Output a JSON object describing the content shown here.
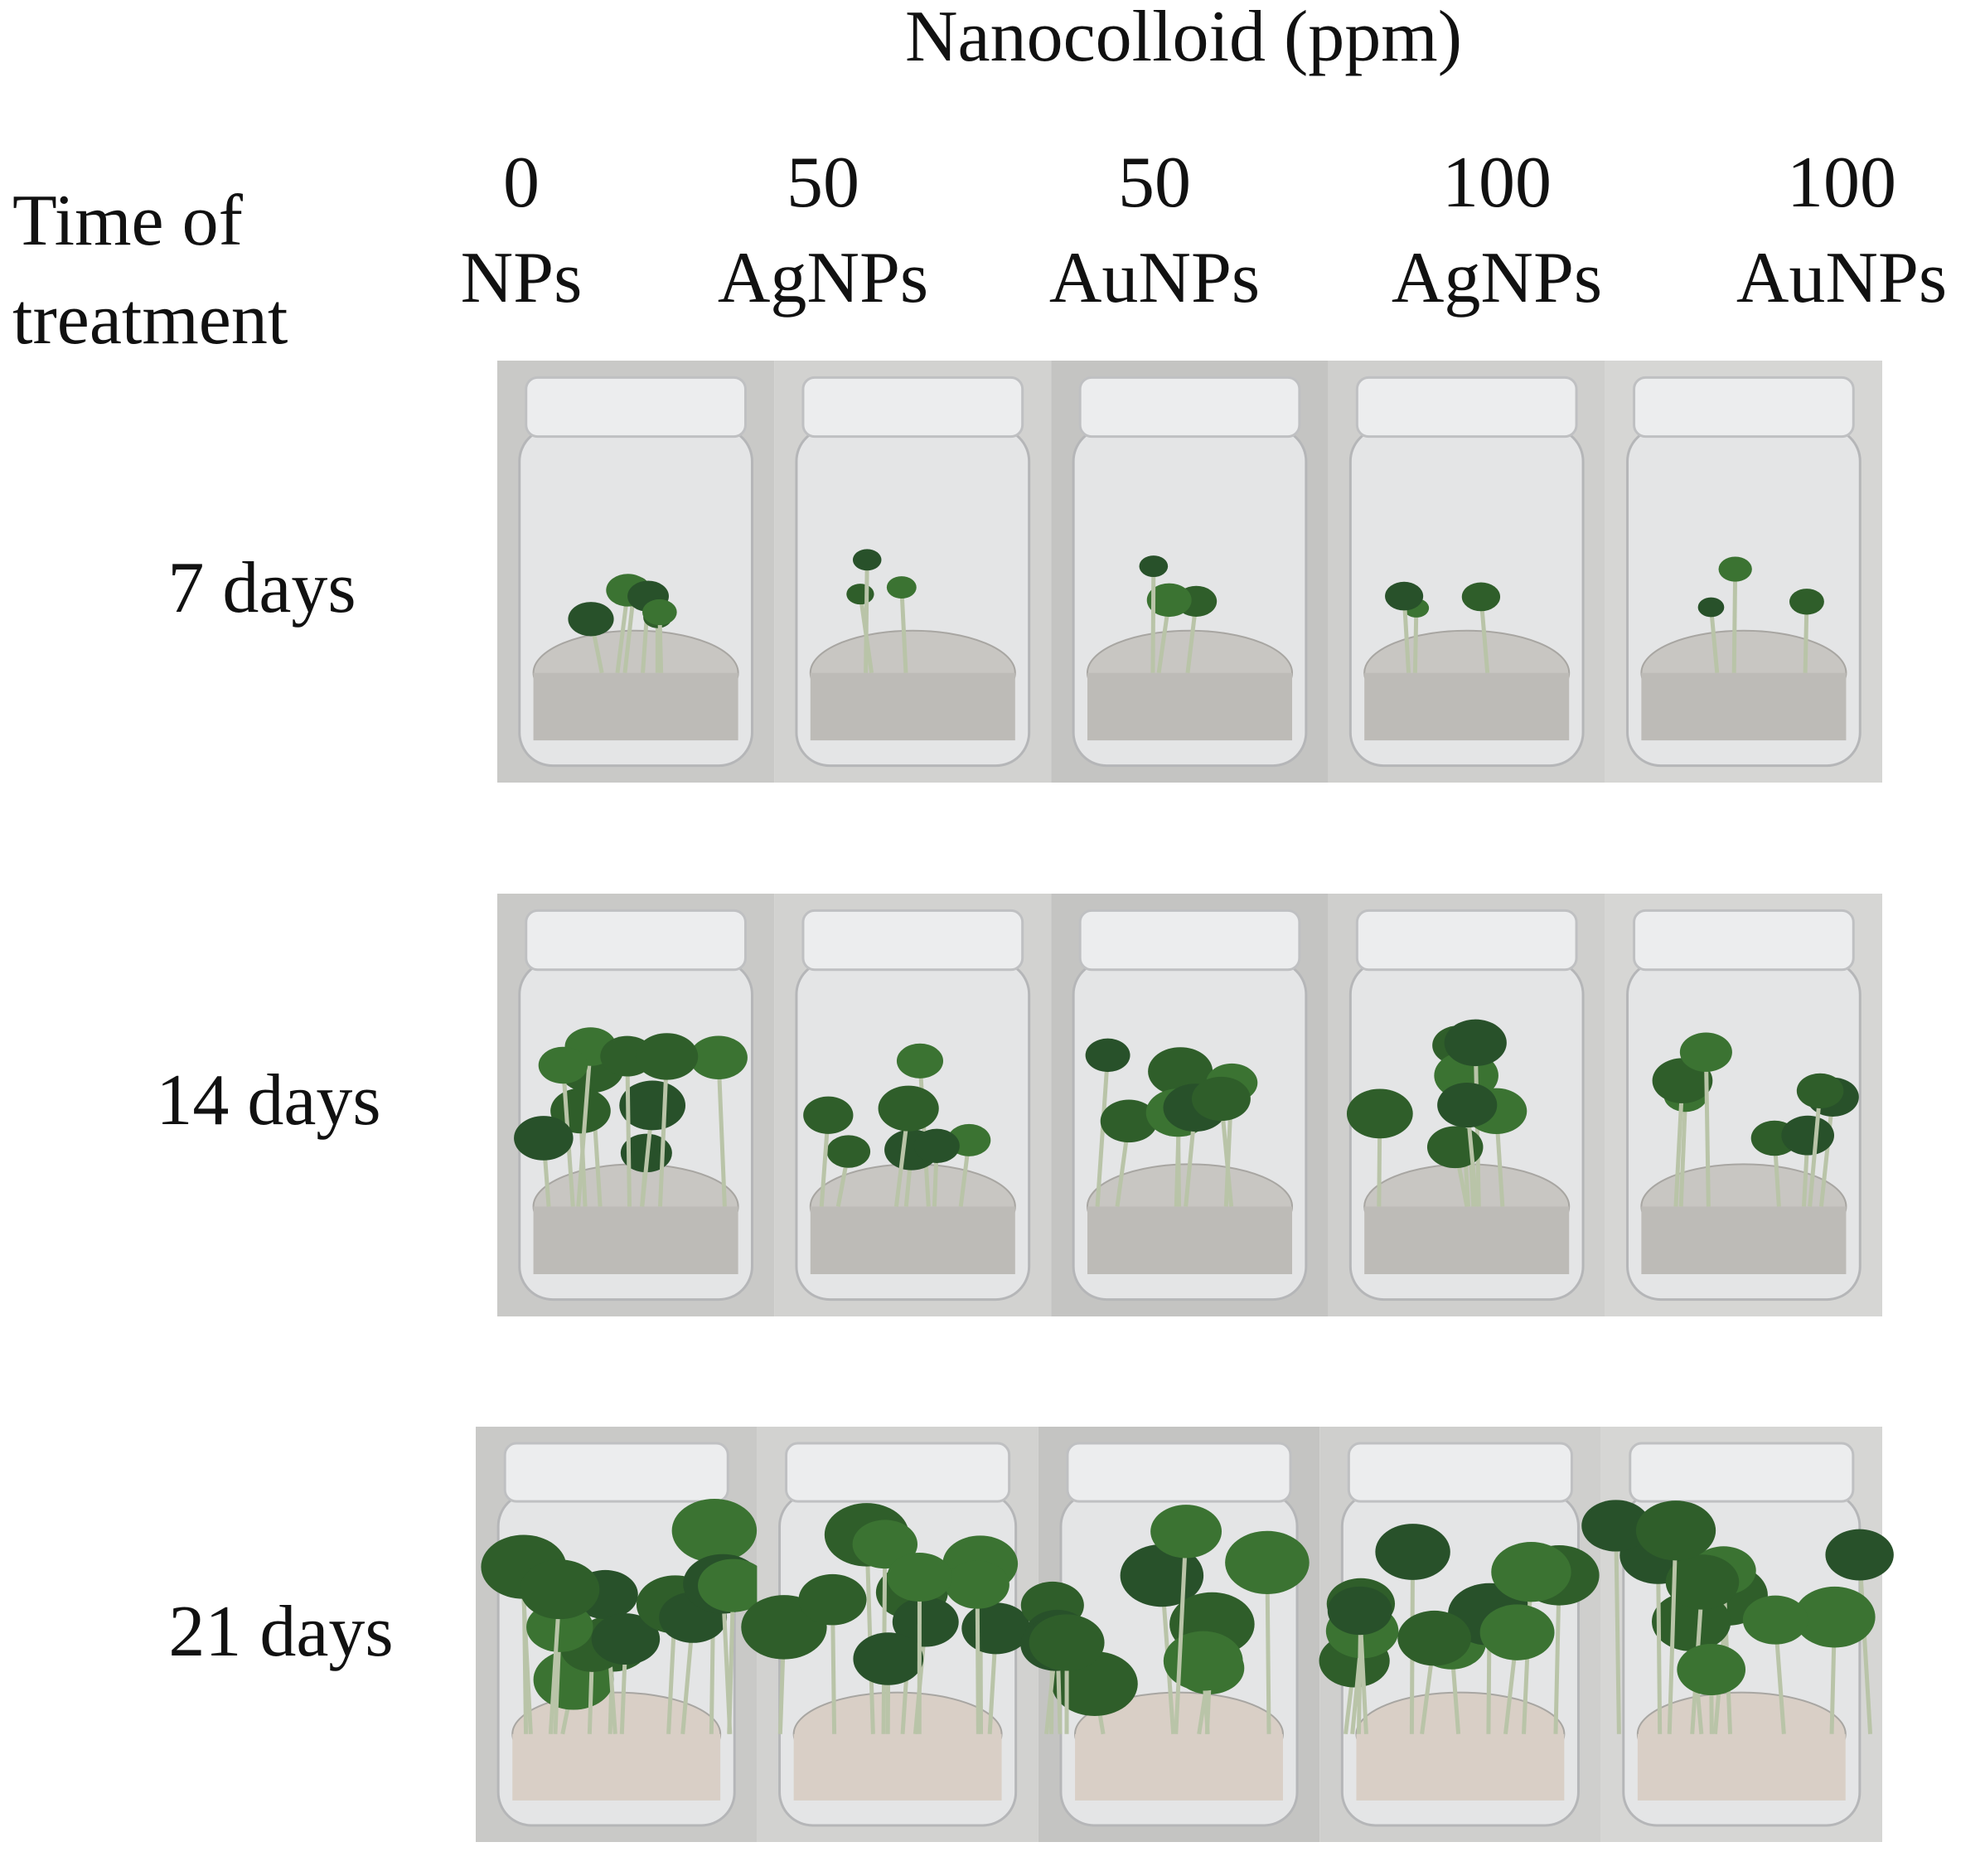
{
  "title": "Nanocolloid (ppm)",
  "row_header": [
    "Time of",
    "treatment"
  ],
  "columns": [
    {
      "dose": "0",
      "label": "NPs"
    },
    {
      "dose": "50",
      "label": "AgNPs"
    },
    {
      "dose": "50",
      "label": "AuNPs"
    },
    {
      "dose": "100",
      "label": "AgNPs"
    },
    {
      "dose": "100",
      "label": "AuNPs"
    }
  ],
  "rows": [
    "7 days",
    "14 days",
    "21 days"
  ]
}
